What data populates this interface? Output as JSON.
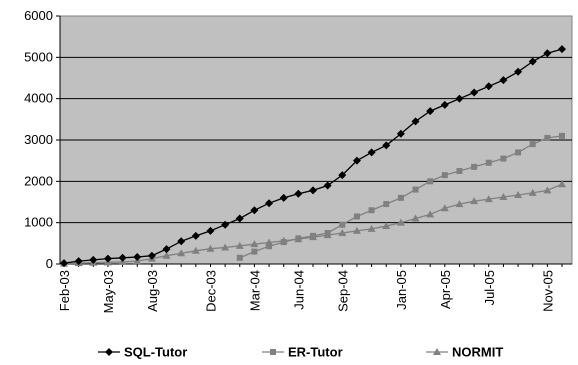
{
  "chart_data": {
    "type": "line",
    "title": "",
    "xlabel": "",
    "ylabel": "",
    "ylim": [
      0,
      6000
    ],
    "yticks": [
      0,
      1000,
      2000,
      3000,
      4000,
      5000,
      6000
    ],
    "x_tick_labels": [
      "Feb-03",
      "May-03",
      "Aug-03",
      "Dec-03",
      "Mar-04",
      "Jun-04",
      "Sep-04",
      "Jan-05",
      "Apr-05",
      "Jul-05",
      "Nov-05"
    ],
    "x_tick_months": [
      "2003-02",
      "2003-05",
      "2003-08",
      "2003-12",
      "2004-03",
      "2004-06",
      "2004-09",
      "2005-01",
      "2005-04",
      "2005-07",
      "2005-11"
    ],
    "x_range": [
      "2003-02",
      "2005-12"
    ],
    "grid": "horizontal",
    "legend_position": "bottom",
    "plot_background": "#c0c0c0",
    "series": [
      {
        "name": "SQL-Tutor",
        "marker": "diamond",
        "color": "#000000",
        "points": [
          [
            "2003-02",
            20
          ],
          [
            "2003-03",
            70
          ],
          [
            "2003-04",
            100
          ],
          [
            "2003-05",
            130
          ],
          [
            "2003-06",
            150
          ],
          [
            "2003-07",
            170
          ],
          [
            "2003-08",
            200
          ],
          [
            "2003-09",
            360
          ],
          [
            "2003-10",
            550
          ],
          [
            "2003-11",
            680
          ],
          [
            "2003-12",
            800
          ],
          [
            "2004-01",
            950
          ],
          [
            "2004-02",
            1100
          ],
          [
            "2004-03",
            1300
          ],
          [
            "2004-04",
            1470
          ],
          [
            "2004-05",
            1600
          ],
          [
            "2004-06",
            1700
          ],
          [
            "2004-07",
            1780
          ],
          [
            "2004-08",
            1900
          ],
          [
            "2004-09",
            2150
          ],
          [
            "2004-10",
            2500
          ],
          [
            "2004-11",
            2700
          ],
          [
            "2004-12",
            2870
          ],
          [
            "2005-01",
            3150
          ],
          [
            "2005-02",
            3450
          ],
          [
            "2005-03",
            3700
          ],
          [
            "2005-04",
            3850
          ],
          [
            "2005-05",
            4000
          ],
          [
            "2005-06",
            4150
          ],
          [
            "2005-07",
            4300
          ],
          [
            "2005-08",
            4450
          ],
          [
            "2005-09",
            4650
          ],
          [
            "2005-10",
            4900
          ],
          [
            "2005-11",
            5100
          ],
          [
            "2005-12",
            5200
          ]
        ]
      },
      {
        "name": "ER-Tutor",
        "marker": "square",
        "color": "#808080",
        "points": [
          [
            "2004-02",
            150
          ],
          [
            "2004-03",
            300
          ],
          [
            "2004-04",
            430
          ],
          [
            "2004-05",
            530
          ],
          [
            "2004-06",
            620
          ],
          [
            "2004-07",
            680
          ],
          [
            "2004-08",
            750
          ],
          [
            "2004-09",
            950
          ],
          [
            "2004-10",
            1150
          ],
          [
            "2004-11",
            1300
          ],
          [
            "2004-12",
            1450
          ],
          [
            "2005-01",
            1600
          ],
          [
            "2005-02",
            1800
          ],
          [
            "2005-03",
            2000
          ],
          [
            "2005-04",
            2150
          ],
          [
            "2005-05",
            2250
          ],
          [
            "2005-06",
            2350
          ],
          [
            "2005-07",
            2450
          ],
          [
            "2005-08",
            2550
          ],
          [
            "2005-09",
            2700
          ],
          [
            "2005-10",
            2900
          ],
          [
            "2005-11",
            3050
          ],
          [
            "2005-12",
            3100
          ]
        ]
      },
      {
        "name": "NORMIT",
        "marker": "triangle",
        "color": "#808080",
        "points": [
          [
            "2003-02",
            10
          ],
          [
            "2003-03",
            20
          ],
          [
            "2003-04",
            30
          ],
          [
            "2003-05",
            40
          ],
          [
            "2003-06",
            50
          ],
          [
            "2003-07",
            70
          ],
          [
            "2003-08",
            130
          ],
          [
            "2003-09",
            200
          ],
          [
            "2003-10",
            260
          ],
          [
            "2003-11",
            320
          ],
          [
            "2003-12",
            370
          ],
          [
            "2004-01",
            400
          ],
          [
            "2004-02",
            440
          ],
          [
            "2004-03",
            480
          ],
          [
            "2004-04",
            520
          ],
          [
            "2004-05",
            560
          ],
          [
            "2004-06",
            600
          ],
          [
            "2004-07",
            650
          ],
          [
            "2004-08",
            700
          ],
          [
            "2004-09",
            750
          ],
          [
            "2004-10",
            800
          ],
          [
            "2004-11",
            850
          ],
          [
            "2004-12",
            920
          ],
          [
            "2005-01",
            1000
          ],
          [
            "2005-02",
            1100
          ],
          [
            "2005-03",
            1200
          ],
          [
            "2005-04",
            1350
          ],
          [
            "2005-05",
            1450
          ],
          [
            "2005-06",
            1520
          ],
          [
            "2005-07",
            1570
          ],
          [
            "2005-08",
            1620
          ],
          [
            "2005-09",
            1670
          ],
          [
            "2005-10",
            1720
          ],
          [
            "2005-11",
            1780
          ],
          [
            "2005-12",
            1930
          ]
        ]
      }
    ]
  }
}
